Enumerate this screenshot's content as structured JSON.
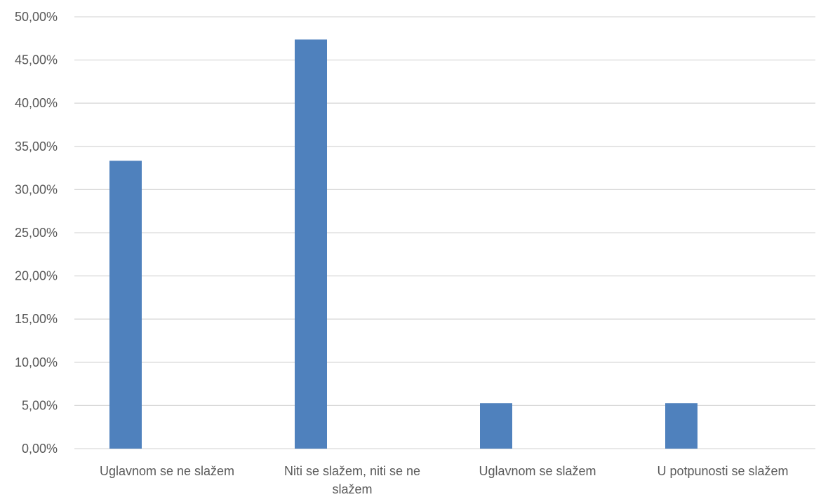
{
  "chart_data": {
    "type": "bar",
    "categories": [
      [
        "Uglavnom se ne slažem"
      ],
      [
        "Niti se slažem, niti se ne",
        "slažem"
      ],
      [
        "Uglavnom se slažem"
      ],
      [
        "U potpunosti se slažem"
      ]
    ],
    "values": [
      33.33,
      47.37,
      5.26,
      5.26
    ],
    "y_ticks": [
      "0,00%",
      "5,00%",
      "10,00%",
      "15,00%",
      "20,00%",
      "25,00%",
      "30,00%",
      "35,00%",
      "40,00%",
      "45,00%",
      "50,00%"
    ],
    "ylim": [
      0,
      50
    ],
    "grid": true,
    "bar_color": "#4F81BD",
    "grid_color": "#D9D9D9",
    "text_color": "#595959"
  }
}
